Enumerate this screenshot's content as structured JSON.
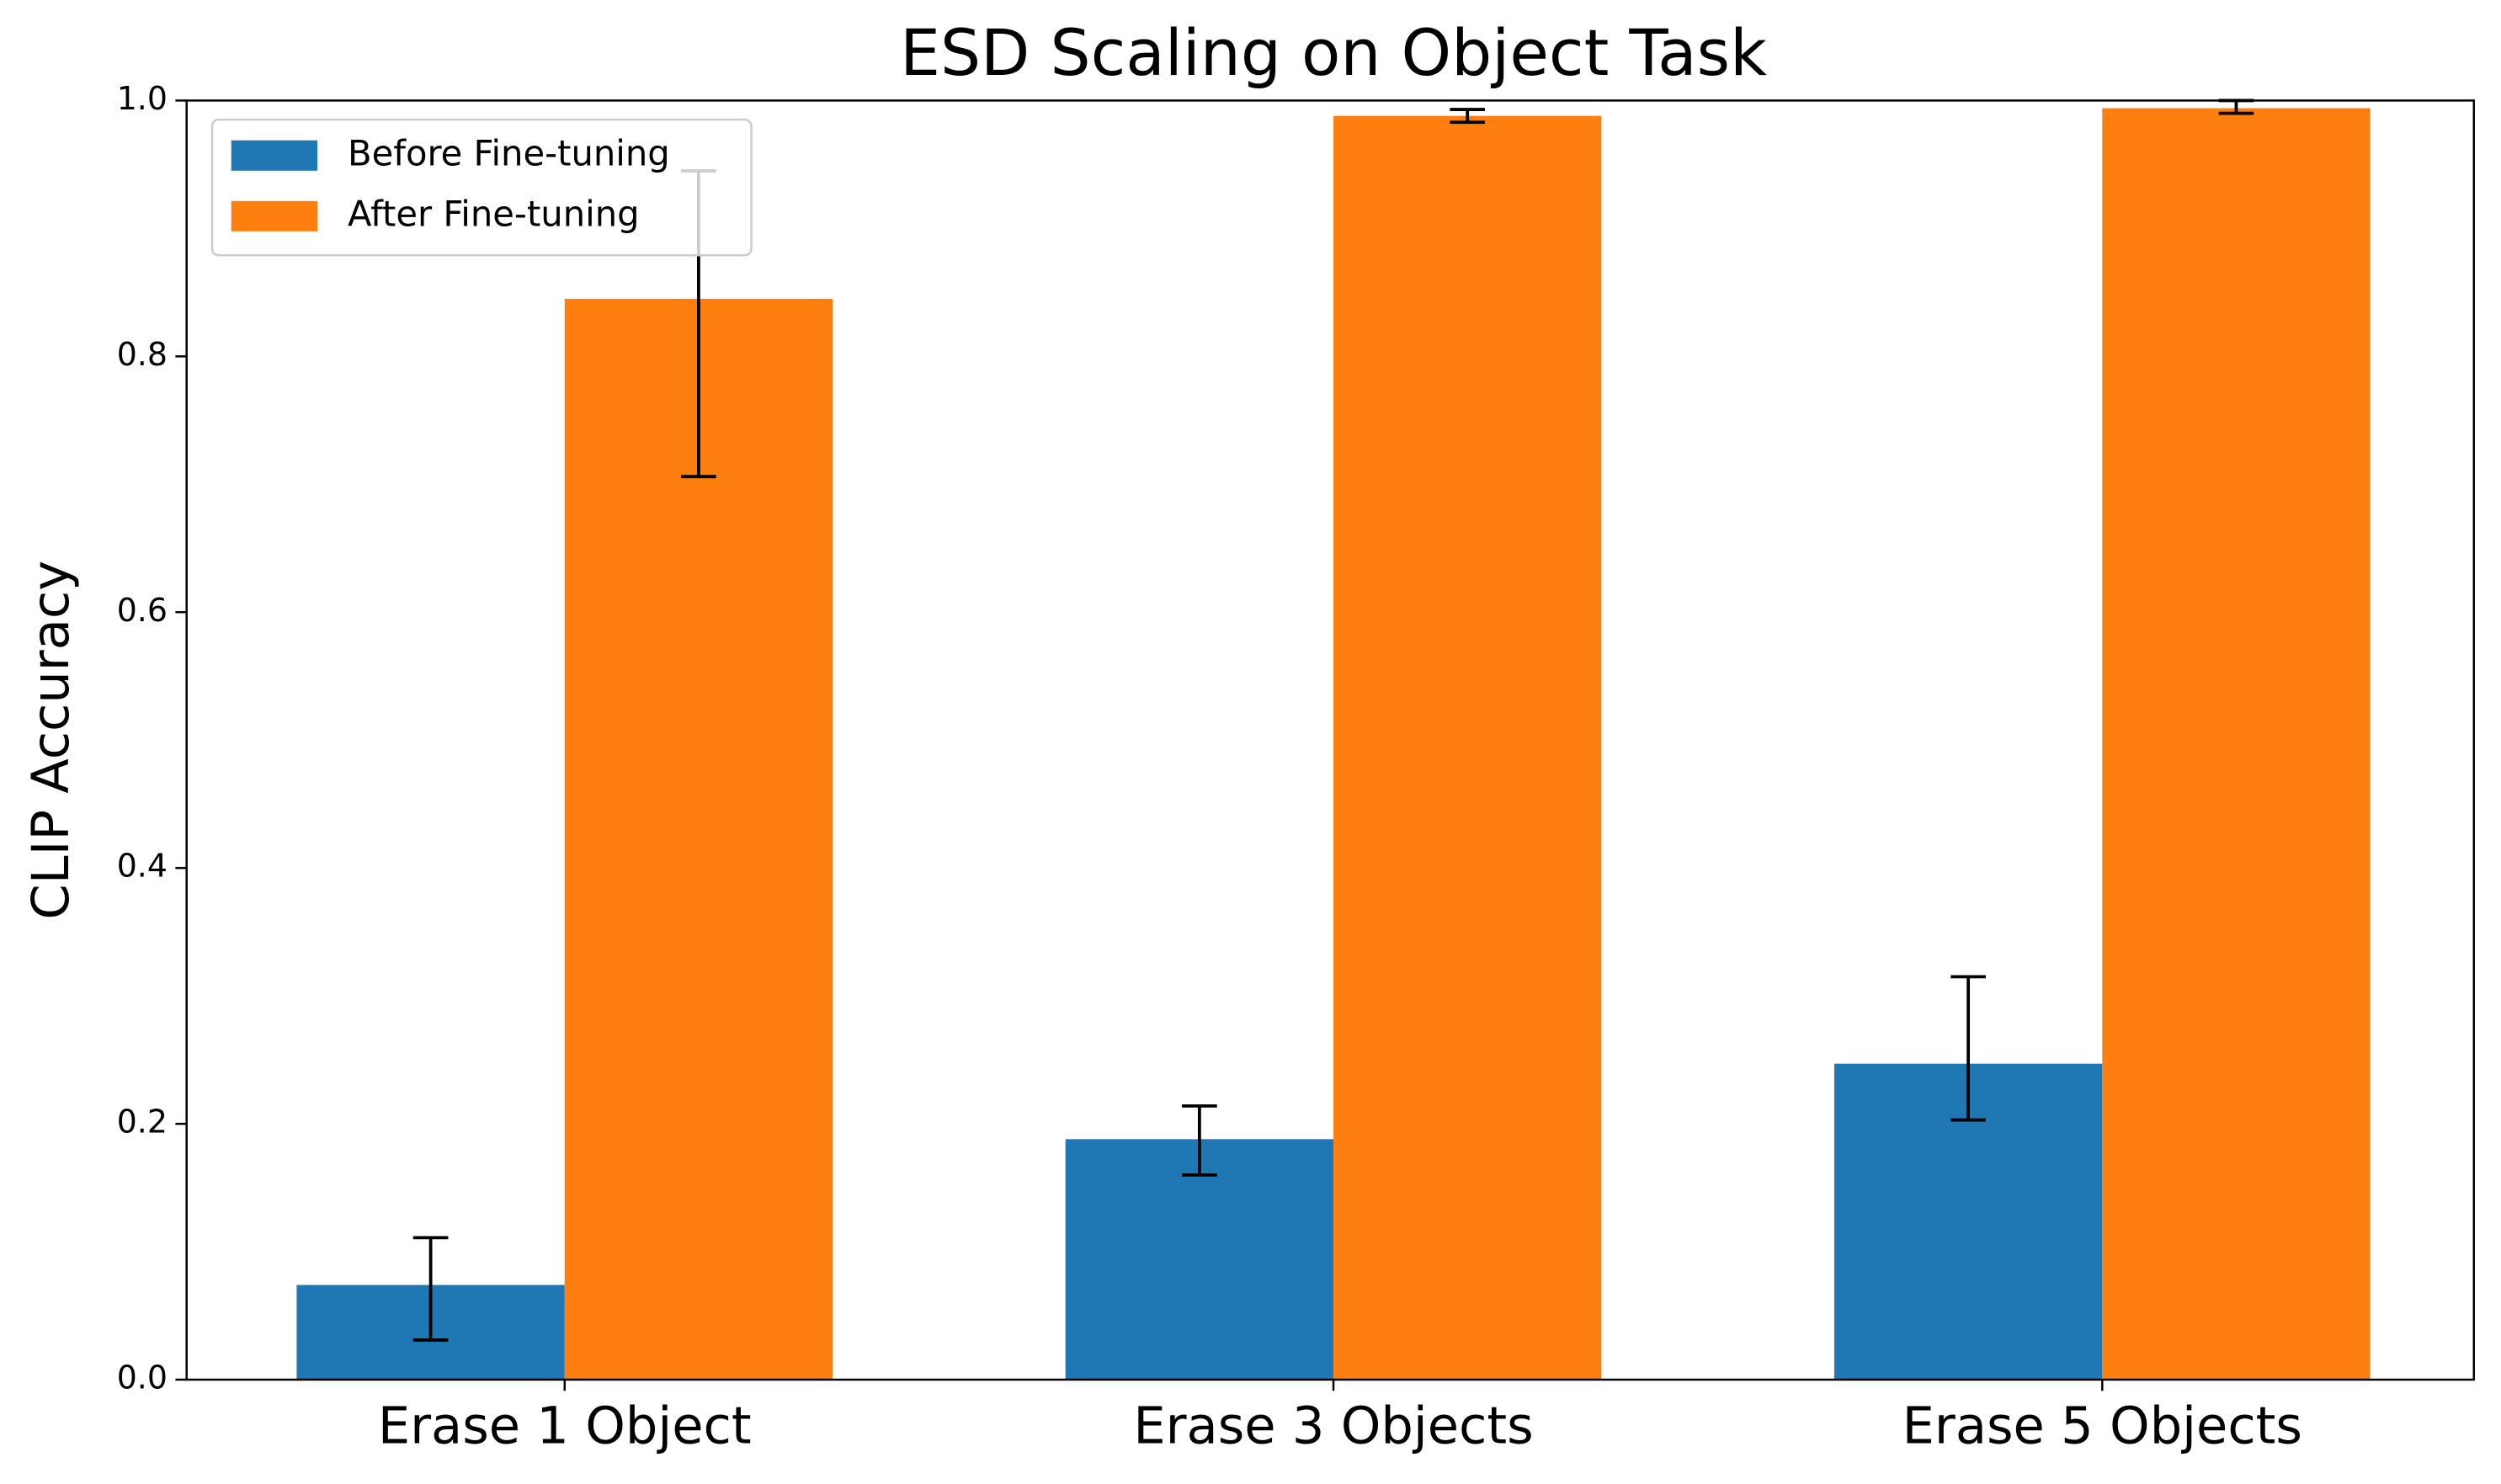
{
  "chart_data": {
    "type": "bar",
    "title": "ESD Scaling on Object Task",
    "y_label": "CLIP Accuracy",
    "categories": [
      "Erase 1 Object",
      "Erase 3 Objects",
      "Erase 5 Objects"
    ],
    "series": [
      {
        "name": "Before Fine-tuning",
        "color": "#1f77b4",
        "values": [
          0.074,
          0.188,
          0.247
        ],
        "error_minus": [
          0.043,
          0.028,
          0.044
        ],
        "error_plus": [
          0.037,
          0.026,
          0.068
        ]
      },
      {
        "name": "After Fine-tuning",
        "color": "#ff7f0e",
        "values": [
          0.845,
          0.988,
          0.994
        ],
        "error_minus": [
          0.139,
          0.005,
          0.004
        ],
        "error_plus": [
          0.1,
          0.005,
          0.006
        ]
      }
    ],
    "ylim": [
      0,
      1
    ],
    "yticks": [
      {
        "value": 0,
        "label": "0.0"
      },
      {
        "value": 0.2,
        "label": "0.2"
      },
      {
        "value": 0.4,
        "label": "0.4"
      },
      {
        "value": 0.6,
        "label": "0.6"
      },
      {
        "value": 0.8,
        "label": "0.8"
      },
      {
        "value": 1,
        "label": "1.0"
      }
    ],
    "legend": "upper left"
  }
}
